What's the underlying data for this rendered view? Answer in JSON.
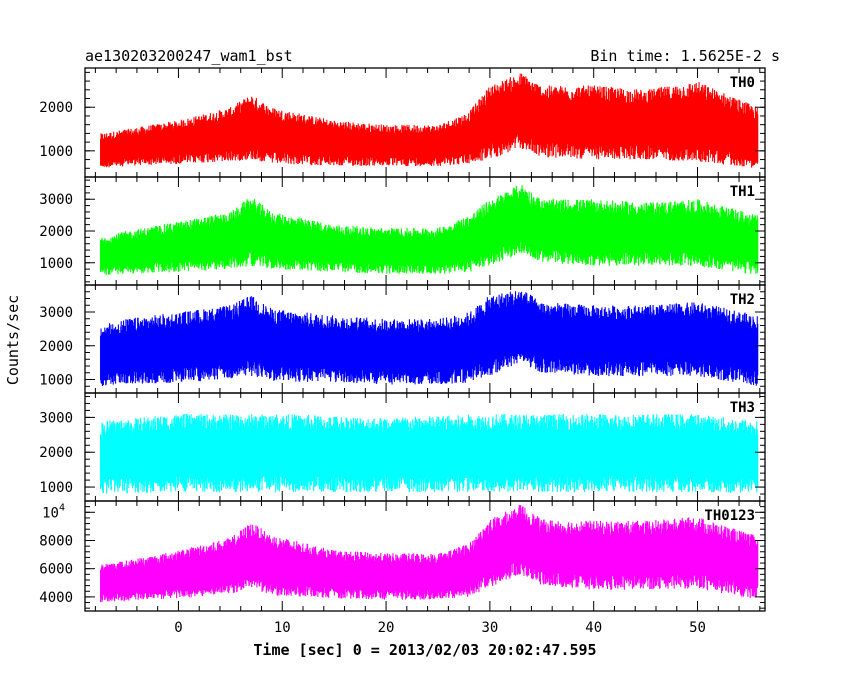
{
  "header": {
    "title": "ae130203200247_wam1_bst",
    "bin_time": "Bin time: 1.5625E-2 s"
  },
  "xlabel": "Time [sec] 0 = 2013/02/03 20:02:47.595",
  "ylabel": "Counts/sec",
  "chart_data": [
    {
      "type": "line",
      "name": "TH0",
      "color": "#ff0000",
      "xlim": [
        -9,
        56.5
      ],
      "ylim": [
        400,
        2900
      ],
      "y_ticks": [
        {
          "v": 1000,
          "label": "1000"
        },
        {
          "v": 2000,
          "label": "2000"
        }
      ],
      "x": [
        -7.5,
        -5,
        0,
        5,
        7,
        9,
        15,
        20,
        25,
        28,
        30,
        33,
        35,
        40,
        45,
        50,
        55.8
      ],
      "lower": [
        600,
        650,
        700,
        750,
        800,
        700,
        650,
        650,
        650,
        700,
        800,
        1050,
        850,
        800,
        800,
        750,
        600
      ],
      "upper": [
        1400,
        1500,
        1700,
        2000,
        2300,
        2000,
        1700,
        1600,
        1600,
        1900,
        2500,
        2800,
        2500,
        2500,
        2400,
        2600,
        2000
      ]
    },
    {
      "type": "line",
      "name": "TH1",
      "color": "#00ff00",
      "xlim": [
        -9,
        56.5
      ],
      "ylim": [
        300,
        3700
      ],
      "y_ticks": [
        {
          "v": 1000,
          "label": "1000"
        },
        {
          "v": 2000,
          "label": "2000"
        },
        {
          "v": 3000,
          "label": "3000"
        }
      ],
      "x": [
        -7.5,
        -5,
        0,
        5,
        7,
        9,
        15,
        20,
        25,
        28,
        30,
        33,
        35,
        40,
        45,
        50,
        55.8
      ],
      "lower": [
        600,
        650,
        700,
        800,
        900,
        800,
        700,
        650,
        650,
        700,
        900,
        1300,
        1000,
        900,
        900,
        900,
        600
      ],
      "upper": [
        1800,
        2000,
        2300,
        2600,
        3100,
        2600,
        2200,
        2100,
        2100,
        2500,
        3000,
        3500,
        3000,
        3000,
        2900,
        3000,
        2500
      ]
    },
    {
      "type": "line",
      "name": "TH2",
      "color": "#0000ff",
      "xlim": [
        -9,
        56.5
      ],
      "ylim": [
        600,
        3800
      ],
      "y_ticks": [
        {
          "v": 1000,
          "label": "1000"
        },
        {
          "v": 2000,
          "label": "2000"
        },
        {
          "v": 3000,
          "label": "3000"
        }
      ],
      "x": [
        -7.5,
        -5,
        0,
        5,
        7,
        9,
        15,
        20,
        25,
        28,
        30,
        33,
        35,
        40,
        45,
        50,
        55.8
      ],
      "lower": [
        800,
        850,
        900,
        1000,
        1100,
        950,
        900,
        850,
        850,
        900,
        1100,
        1500,
        1200,
        1100,
        1100,
        1100,
        800
      ],
      "upper": [
        2600,
        2800,
        3000,
        3200,
        3500,
        3100,
        2900,
        2800,
        2800,
        3000,
        3500,
        3700,
        3300,
        3200,
        3200,
        3300,
        2900
      ]
    },
    {
      "type": "line",
      "name": "TH3",
      "color": "#00ffff",
      "xlim": [
        -9,
        56.5
      ],
      "ylim": [
        600,
        3700
      ],
      "y_ticks": [
        {
          "v": 1000,
          "label": "1000"
        },
        {
          "v": 2000,
          "label": "2000"
        },
        {
          "v": 3000,
          "label": "3000"
        }
      ],
      "x": [
        -7.5,
        0,
        10,
        20,
        30,
        40,
        50,
        55.8
      ],
      "lower": [
        800,
        850,
        850,
        850,
        850,
        850,
        850,
        800
      ],
      "upper": [
        2900,
        3100,
        3100,
        3000,
        3100,
        3100,
        3100,
        2900
      ]
    },
    {
      "type": "line",
      "name": "TH0123",
      "color": "#ff00ff",
      "xlim": [
        -9,
        56.5
      ],
      "ylim": [
        3000,
        10800
      ],
      "y_ticks": [
        {
          "v": 4000,
          "label": "4000"
        },
        {
          "v": 6000,
          "label": "6000"
        },
        {
          "v": 8000,
          "label": "8000"
        },
        {
          "v": 10000,
          "label": "10",
          "sup": "4"
        }
      ],
      "x": [
        -7.5,
        -5,
        0,
        5,
        7,
        9,
        15,
        20,
        25,
        28,
        30,
        33,
        35,
        40,
        45,
        50,
        55.8
      ],
      "lower": [
        3600,
        3700,
        3900,
        4200,
        4600,
        4100,
        3900,
        3800,
        3800,
        4000,
        4700,
        5600,
        4800,
        4500,
        4500,
        4600,
        3800
      ],
      "upper": [
        6300,
        6600,
        7300,
        8200,
        9300,
        8400,
        7300,
        7100,
        7100,
        7800,
        9500,
        10600,
        9500,
        9400,
        9400,
        9700,
        8300
      ]
    }
  ],
  "x_ticks": [
    0,
    10,
    20,
    30,
    40,
    50
  ]
}
